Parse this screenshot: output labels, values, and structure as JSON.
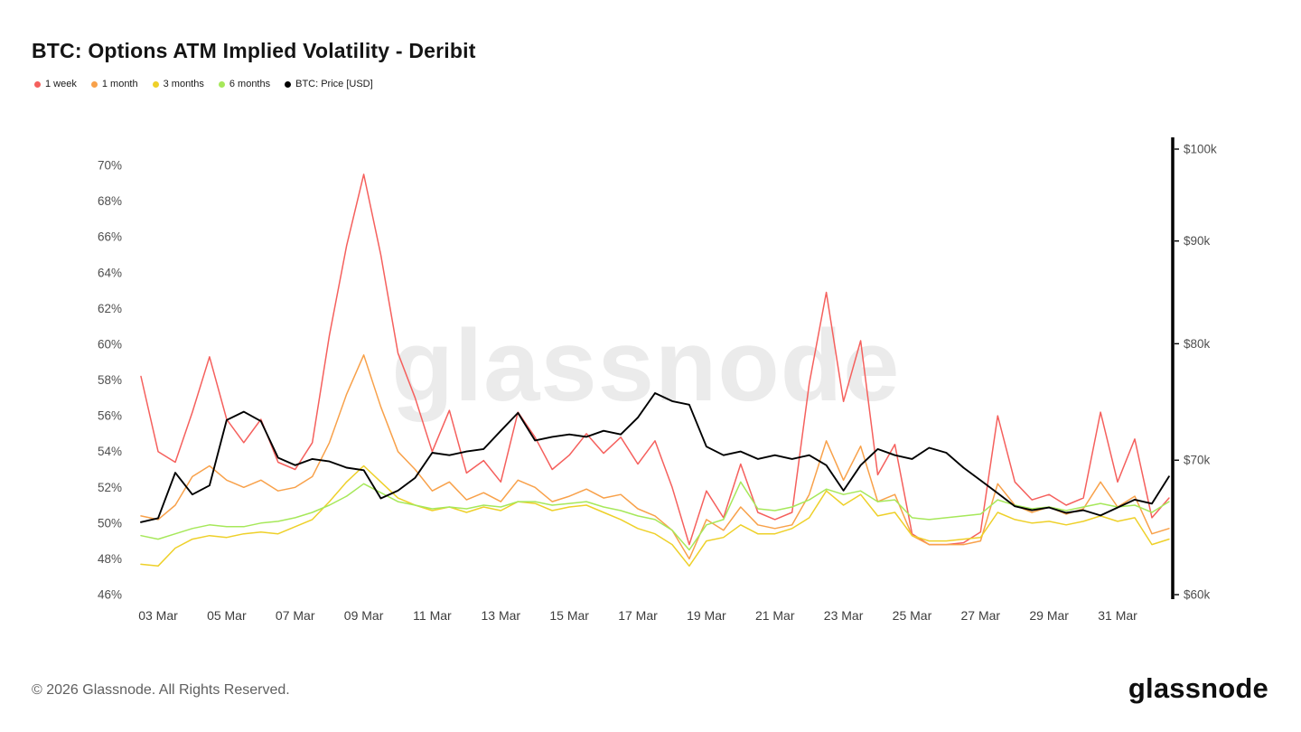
{
  "header": {
    "title": "BTC: Options ATM Implied Volatility - Deribit"
  },
  "watermark_text": "glassnode",
  "footer": {
    "copyright": "© 2026 Glassnode. All Rights Reserved.",
    "brand_logo": "glassnode"
  },
  "chart_data": {
    "type": "line",
    "title": "BTC: Options ATM Implied Volatility - Deribit",
    "legend_position": "top-left",
    "grid": false,
    "x_axis": {
      "unit": "date (March)",
      "start_day": 2.5,
      "step_days": 0.5,
      "tick_days": [
        3,
        5,
        7,
        9,
        11,
        13,
        15,
        17,
        19,
        21,
        23,
        25,
        27,
        29,
        31
      ],
      "tick_labels": [
        "03 Mar",
        "05 Mar",
        "07 Mar",
        "09 Mar",
        "11 Mar",
        "13 Mar",
        "15 Mar",
        "17 Mar",
        "19 Mar",
        "21 Mar",
        "23 Mar",
        "25 Mar",
        "27 Mar",
        "29 Mar",
        "31 Mar"
      ]
    },
    "left_axis": {
      "title": "ATM Implied Volatility",
      "unit": "%",
      "scale": "linear",
      "min": 46,
      "max": 70,
      "ticks": [
        46,
        48,
        50,
        52,
        54,
        56,
        58,
        60,
        62,
        64,
        66,
        68,
        70
      ],
      "tick_labels": [
        "46%",
        "48%",
        "50%",
        "52%",
        "54%",
        "56%",
        "58%",
        "60%",
        "62%",
        "64%",
        "66%",
        "68%",
        "70%"
      ]
    },
    "right_axis": {
      "title": "BTC: Price [USD]",
      "unit": "USD (thousands)",
      "scale": "log",
      "min": 60,
      "max": 100,
      "ticks": [
        60,
        70,
        80,
        90,
        100
      ],
      "tick_labels": [
        "$60k",
        "$70k",
        "$80k",
        "$90k",
        "$100k"
      ]
    },
    "series": [
      {
        "name": "1 week",
        "color": "#f5605d",
        "axis": "left",
        "width": 1.5,
        "values": [
          58.2,
          54.0,
          53.4,
          56.2,
          59.3,
          55.8,
          54.5,
          55.8,
          53.4,
          53.0,
          54.5,
          60.5,
          65.5,
          69.5,
          65.0,
          59.5,
          57.0,
          54.0,
          56.3,
          52.8,
          53.5,
          52.3,
          56.2,
          54.8,
          53.0,
          53.8,
          55.0,
          53.9,
          54.8,
          53.3,
          54.6,
          52.0,
          48.8,
          51.8,
          50.3,
          53.3,
          50.6,
          50.2,
          50.6,
          57.8,
          62.9,
          56.8,
          60.2,
          52.7,
          54.4,
          49.4,
          48.8,
          48.8,
          48.9,
          49.5,
          56.0,
          52.3,
          51.3,
          51.6,
          51.0,
          51.4,
          56.2,
          52.3,
          54.7,
          50.3,
          51.4
        ]
      },
      {
        "name": "1 month",
        "color": "#f8a14a",
        "axis": "left",
        "width": 1.5,
        "values": [
          50.4,
          50.2,
          51.0,
          52.6,
          53.2,
          52.4,
          52.0,
          52.4,
          51.8,
          52.0,
          52.6,
          54.5,
          57.2,
          59.4,
          56.5,
          54.0,
          53.0,
          51.8,
          52.3,
          51.3,
          51.7,
          51.2,
          52.4,
          52.0,
          51.2,
          51.5,
          51.9,
          51.4,
          51.6,
          50.8,
          50.4,
          49.6,
          48.0,
          50.2,
          49.6,
          50.9,
          49.9,
          49.7,
          49.9,
          51.6,
          54.6,
          52.4,
          54.3,
          51.2,
          51.6,
          49.3,
          48.8,
          48.8,
          48.8,
          49.0,
          52.2,
          51.0,
          50.6,
          50.9,
          50.5,
          50.8,
          52.3,
          50.9,
          51.5,
          49.4,
          49.7
        ]
      },
      {
        "name": "3 months",
        "color": "#eed029",
        "axis": "left",
        "width": 1.5,
        "values": [
          47.7,
          47.6,
          48.6,
          49.1,
          49.3,
          49.2,
          49.4,
          49.5,
          49.4,
          49.8,
          50.2,
          51.2,
          52.3,
          53.2,
          52.3,
          51.4,
          51.0,
          50.7,
          50.9,
          50.6,
          50.9,
          50.7,
          51.2,
          51.1,
          50.7,
          50.9,
          51.0,
          50.6,
          50.2,
          49.7,
          49.4,
          48.8,
          47.6,
          49.0,
          49.2,
          49.9,
          49.4,
          49.4,
          49.7,
          50.3,
          51.8,
          51.0,
          51.6,
          50.4,
          50.6,
          49.3,
          49.0,
          49.0,
          49.1,
          49.2,
          50.6,
          50.2,
          50.0,
          50.1,
          49.9,
          50.1,
          50.4,
          50.1,
          50.3,
          48.8,
          49.1
        ]
      },
      {
        "name": "6 months",
        "color": "#a6e85a",
        "axis": "left",
        "width": 1.5,
        "values": [
          49.3,
          49.1,
          49.4,
          49.7,
          49.9,
          49.8,
          49.8,
          50.0,
          50.1,
          50.3,
          50.6,
          51.0,
          51.5,
          52.2,
          51.7,
          51.2,
          51.0,
          50.8,
          50.9,
          50.8,
          51.0,
          50.9,
          51.2,
          51.2,
          51.0,
          51.1,
          51.2,
          50.9,
          50.7,
          50.4,
          50.2,
          49.6,
          48.5,
          49.9,
          50.2,
          52.3,
          50.8,
          50.7,
          50.9,
          51.3,
          51.9,
          51.6,
          51.8,
          51.2,
          51.3,
          50.3,
          50.2,
          50.3,
          50.4,
          50.5,
          51.3,
          51.0,
          50.8,
          50.9,
          50.7,
          50.9,
          51.1,
          50.9,
          51.0,
          50.6,
          51.2
        ]
      },
      {
        "name": "BTC: Price [USD]",
        "color": "#000000",
        "axis": "right",
        "width": 1.9,
        "values": [
          65.2,
          65.5,
          69.0,
          67.3,
          68.0,
          73.3,
          74.0,
          73.2,
          70.2,
          69.6,
          70.1,
          69.9,
          69.4,
          69.2,
          67.0,
          67.6,
          68.6,
          70.6,
          70.4,
          70.7,
          70.9,
          72.4,
          73.9,
          71.6,
          71.9,
          72.1,
          71.9,
          72.4,
          72.1,
          73.5,
          75.6,
          74.9,
          74.6,
          71.1,
          70.4,
          70.7,
          70.1,
          70.4,
          70.1,
          70.4,
          69.6,
          67.6,
          69.6,
          70.9,
          70.4,
          70.1,
          71.0,
          70.6,
          69.4,
          68.4,
          67.4,
          66.4,
          66.1,
          66.3,
          65.9,
          66.1,
          65.7,
          66.3,
          66.9,
          66.6,
          68.7
        ]
      }
    ]
  }
}
